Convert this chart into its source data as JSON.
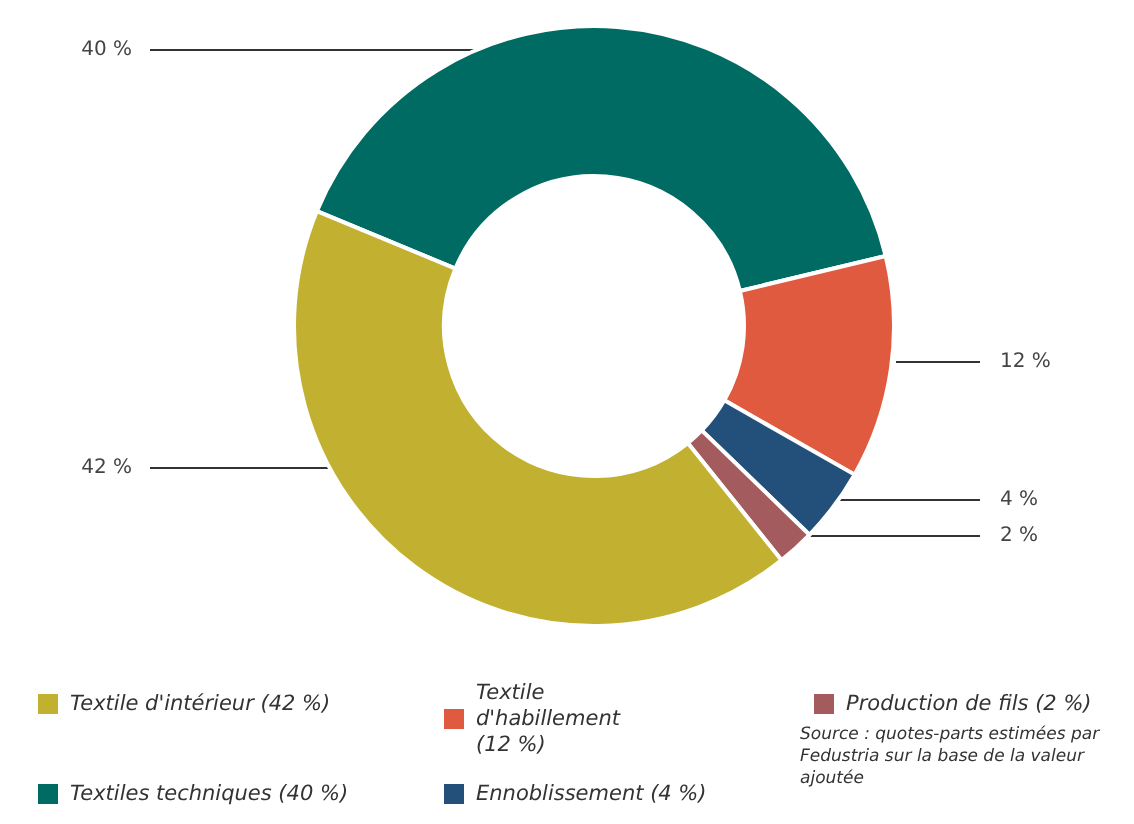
{
  "chart_data": {
    "type": "donut",
    "categories": [
      "Textiles techniques (40 %)",
      "Textile d'habillement (12 %)",
      "Ennoblissement (4 %)",
      "Production de fils (2 %)",
      "Textile d'intérieur (42 %)"
    ],
    "values": [
      40,
      12,
      4,
      2,
      42
    ],
    "colors": [
      "#006b63",
      "#e05a40",
      "#23507a",
      "#a35b5e",
      "#c2b030"
    ],
    "value_labels": [
      "40 %",
      "12 %",
      "4 %",
      "2 %",
      "42 %"
    ],
    "legend": "bottom",
    "annotations": [
      "Source : quotes-parts estimées par Fedustria sur la base de la valeur ajoutée"
    ]
  }
}
